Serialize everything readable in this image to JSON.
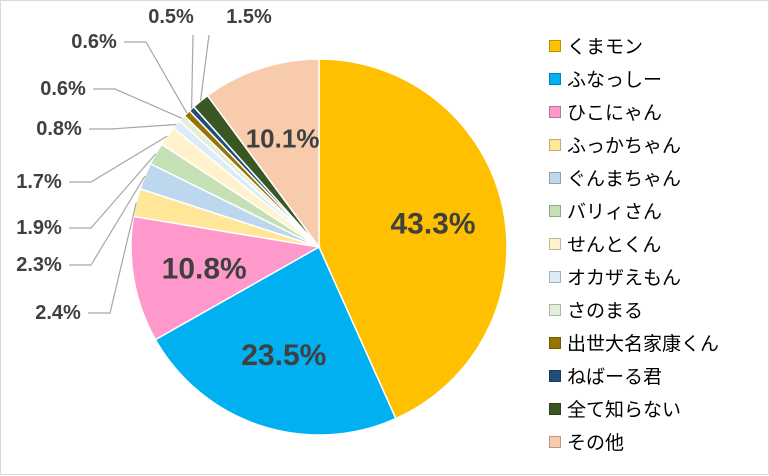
{
  "chart_data": {
    "type": "pie",
    "title": "",
    "start": "12 o'clock, clockwise",
    "legend_position": "right",
    "slices": [
      {
        "name": "くまモン",
        "value": 43.3,
        "label": "43.3%",
        "color": "#FFC000"
      },
      {
        "name": "ふなっしー",
        "value": 23.5,
        "label": "23.5%",
        "color": "#00B0F0"
      },
      {
        "name": "ひこにゃん",
        "value": 10.8,
        "label": "10.8%",
        "color": "#FF99CC"
      },
      {
        "name": "ふっかちゃん",
        "value": 2.4,
        "label": "2.4%",
        "color": "#FFE699"
      },
      {
        "name": "ぐんまちゃん",
        "value": 2.3,
        "label": "2.3%",
        "color": "#BDD7EE"
      },
      {
        "name": "バリィさん",
        "value": 1.9,
        "label": "1.9%",
        "color": "#C5E0B4"
      },
      {
        "name": "せんとくん",
        "value": 1.7,
        "label": "1.7%",
        "color": "#FFF2CC"
      },
      {
        "name": "オカザえもん",
        "value": 0.8,
        "label": "0.8%",
        "color": "#DEEBF7"
      },
      {
        "name": "さのまる",
        "value": 0.6,
        "label": "0.6%",
        "color": "#E2F0D9"
      },
      {
        "name": "出世大名家康くん",
        "value": 0.6,
        "label": "0.6%",
        "color": "#997300"
      },
      {
        "name": "ねばーる君",
        "value": 0.5,
        "label": "0.5%",
        "color": "#1F4E79"
      },
      {
        "name": "全て知らない",
        "value": 1.5,
        "label": "1.5%",
        "color": "#385723"
      },
      {
        "name": "その他",
        "value": 10.1,
        "label": "10.1%",
        "color": "#F8CBAD"
      }
    ]
  }
}
